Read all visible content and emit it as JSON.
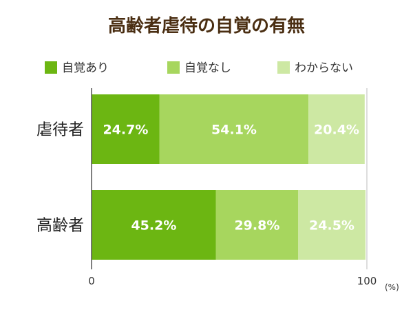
{
  "chart_data": {
    "type": "bar",
    "orientation": "horizontal",
    "stacked": true,
    "title": "高齢者虐待の自覚の有無",
    "categories": [
      "虐待者",
      "高齢者"
    ],
    "series": [
      {
        "name": "自覚あり",
        "values": [
          24.7,
          45.2
        ],
        "labels": [
          "24.7%",
          "45.2%"
        ],
        "color": "#6cb612"
      },
      {
        "name": "自覚なし",
        "values": [
          54.1,
          29.8
        ],
        "labels": [
          "54.1%",
          "29.8%"
        ],
        "color": "#a7d65e"
      },
      {
        "name": "わからない",
        "values": [
          20.4,
          24.5
        ],
        "labels": [
          "20.4%",
          "24.5%"
        ],
        "color": "#cde8a3"
      }
    ],
    "xlim": [
      0,
      100
    ],
    "x_ticks": [
      "0",
      "100"
    ],
    "x_unit": "(%)",
    "legend_position": "top",
    "grid": false
  }
}
